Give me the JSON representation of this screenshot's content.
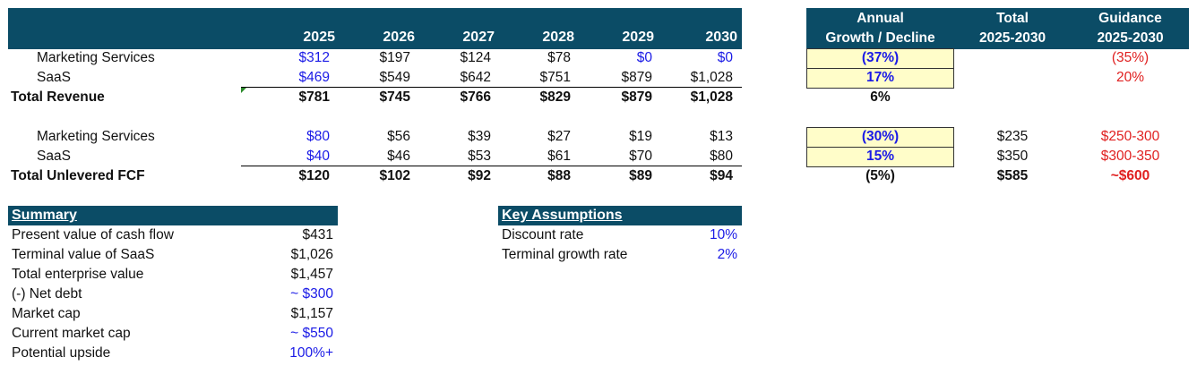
{
  "years": [
    "2025",
    "2026",
    "2027",
    "2028",
    "2029",
    "2030"
  ],
  "right_headers": {
    "growth_line1": "Annual",
    "growth_line2": "Growth / Decline",
    "total_line1": "Total",
    "total_line2": "2025-2030",
    "guidance_line1": "Guidance",
    "guidance_line2": "2025-2030"
  },
  "revenue": {
    "rows": [
      {
        "label": "Marketing Services",
        "values": [
          "$312",
          "$197",
          "$124",
          "$78",
          "$0",
          "$0"
        ],
        "growth": "(37%)",
        "total": "",
        "guidance": "(35%)"
      },
      {
        "label": "SaaS",
        "values": [
          "$469",
          "$549",
          "$642",
          "$751",
          "$879",
          "$1,028"
        ],
        "growth": "17%",
        "total": "",
        "guidance": "20%"
      }
    ],
    "total": {
      "label": "Total Revenue",
      "values": [
        "$781",
        "$745",
        "$766",
        "$829",
        "$879",
        "$1,028"
      ],
      "growth": "6%",
      "total": "",
      "guidance": ""
    }
  },
  "fcf": {
    "rows": [
      {
        "label": "Marketing Services",
        "values": [
          "$80",
          "$56",
          "$39",
          "$27",
          "$19",
          "$13"
        ],
        "growth": "(30%)",
        "total": "$235",
        "guidance": "$250-300"
      },
      {
        "label": "SaaS",
        "values": [
          "$40",
          "$46",
          "$53",
          "$61",
          "$70",
          "$80"
        ],
        "growth": "15%",
        "total": "$350",
        "guidance": "$300-350"
      }
    ],
    "total": {
      "label": "Total Unlevered FCF",
      "values": [
        "$120",
        "$102",
        "$92",
        "$88",
        "$89",
        "$94"
      ],
      "growth": "(5%)",
      "total": "$585",
      "guidance": "~$600"
    }
  },
  "summary": {
    "title": "Summary",
    "rows": [
      {
        "label": "Present value of cash flow",
        "value": "$431"
      },
      {
        "label": "Terminal value of SaaS",
        "value": "$1,026"
      },
      {
        "label": "Total enterprise value",
        "value": "$1,457"
      },
      {
        "label": "(-) Net debt",
        "value": "~ $300"
      },
      {
        "label": "Market cap",
        "value": "$1,157"
      },
      {
        "label": "Current market cap",
        "value": "~ $550"
      },
      {
        "label": "Potential upside",
        "value": "100%+"
      }
    ]
  },
  "assumptions": {
    "title": "Key Assumptions",
    "rows": [
      {
        "label": "Discount rate",
        "value": "10%"
      },
      {
        "label": "Terminal growth rate",
        "value": "2%"
      }
    ]
  },
  "colors": {
    "header_bg": "#0b4c66",
    "input_blue": "#1a1ae6",
    "guidance_red": "#e02020",
    "highlight_yellow": "#fffdc9"
  }
}
